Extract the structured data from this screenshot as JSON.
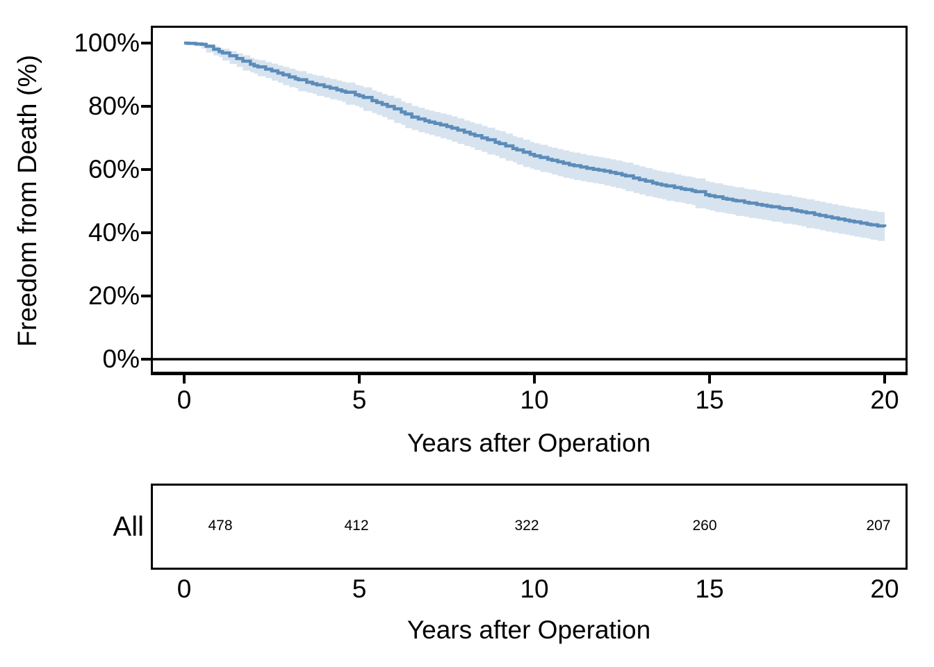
{
  "figure": {
    "background": "#FFFFFF",
    "main_plot": {
      "y_axis": {
        "title": "Freedom from Death (%)",
        "tick_labels": [
          "100%",
          "80%",
          "60%",
          "40%",
          "20%",
          "0%"
        ]
      },
      "x_axis": {
        "title": "Years after Operation",
        "tick_labels": [
          "0",
          "5",
          "10",
          "15",
          "20"
        ]
      },
      "reference_line_y_percent": 0,
      "colors": {
        "curve": "#5B8CB9",
        "ci_band": "#D7E3EF",
        "axis": "#000000"
      }
    },
    "risk_table": {
      "row_label": "All",
      "counts": [
        "478",
        "412",
        "322",
        "260",
        "207"
      ],
      "x_axis": {
        "title": "Years after Operation",
        "tick_labels": [
          "0",
          "5",
          "10",
          "15",
          "20"
        ]
      }
    }
  },
  "chart_data": {
    "type": "line",
    "chart_kind": "kaplan_meier_survival_curve",
    "title": "",
    "xlabel": "Years after Operation",
    "ylabel": "Freedom from Death (%)",
    "xlim": [
      0,
      20
    ],
    "ylim_percent": [
      0,
      100
    ],
    "x_ticks": [
      0,
      5,
      10,
      15,
      20
    ],
    "y_ticks_percent": [
      100,
      80,
      60,
      40,
      20,
      0
    ],
    "grid": false,
    "legend": false,
    "series": [
      {
        "name": "All",
        "line_color": "#5B8CB9",
        "ci_color": "#D7E3EF",
        "time_years": [
          0,
          0.5,
          1,
          1.5,
          2,
          2.5,
          3,
          3.5,
          4,
          4.5,
          5,
          5.5,
          6,
          6.5,
          7,
          7.5,
          8,
          8.5,
          9,
          9.5,
          10,
          10.5,
          11,
          11.5,
          12,
          12.5,
          13,
          13.5,
          14,
          14.5,
          15,
          15.5,
          16,
          16.5,
          17,
          17.5,
          18,
          18.5,
          19,
          19.5,
          20
        ],
        "survival_percent": [
          100,
          99.6,
          97.3,
          95.1,
          92.8,
          91.2,
          89.3,
          87.6,
          86.2,
          84.8,
          83.3,
          81.2,
          79.2,
          76.6,
          75.0,
          73.6,
          71.8,
          70.0,
          68.2,
          66.2,
          64.3,
          62.9,
          61.5,
          60.4,
          59.5,
          58.3,
          56.8,
          55.4,
          54.3,
          53.3,
          51.7,
          50.6,
          49.6,
          48.7,
          47.8,
          46.9,
          45.8,
          44.7,
          43.7,
          42.7,
          41.8
        ],
        "ci_lower_percent": [
          100,
          99.0,
          96.1,
          93.4,
          90.7,
          88.9,
          86.7,
          84.8,
          83.3,
          81.8,
          80.1,
          77.9,
          75.8,
          73.1,
          71.4,
          69.9,
          68.1,
          66.2,
          64.3,
          62.3,
          60.3,
          58.9,
          57.4,
          56.3,
          55.4,
          54.1,
          52.6,
          51.2,
          50.1,
          49.1,
          47.4,
          46.3,
          45.3,
          44.4,
          43.5,
          42.6,
          41.5,
          40.4,
          39.4,
          38.4,
          37.4
        ],
        "ci_upper_percent": [
          100,
          100,
          98.5,
          96.8,
          94.9,
          93.5,
          91.9,
          90.4,
          89.1,
          87.8,
          86.5,
          84.5,
          82.6,
          80.1,
          78.6,
          77.3,
          75.5,
          73.8,
          72.1,
          70.1,
          68.3,
          66.9,
          65.6,
          64.5,
          63.6,
          62.5,
          61.0,
          59.6,
          58.5,
          57.5,
          56.0,
          54.9,
          53.9,
          53.0,
          52.1,
          51.2,
          50.1,
          49.0,
          48.0,
          47.1,
          46.2
        ]
      }
    ],
    "number_at_risk": {
      "row_label": "All",
      "times_years": [
        0,
        5,
        10,
        15,
        20
      ],
      "counts": [
        478,
        412,
        322,
        260,
        207
      ]
    }
  }
}
